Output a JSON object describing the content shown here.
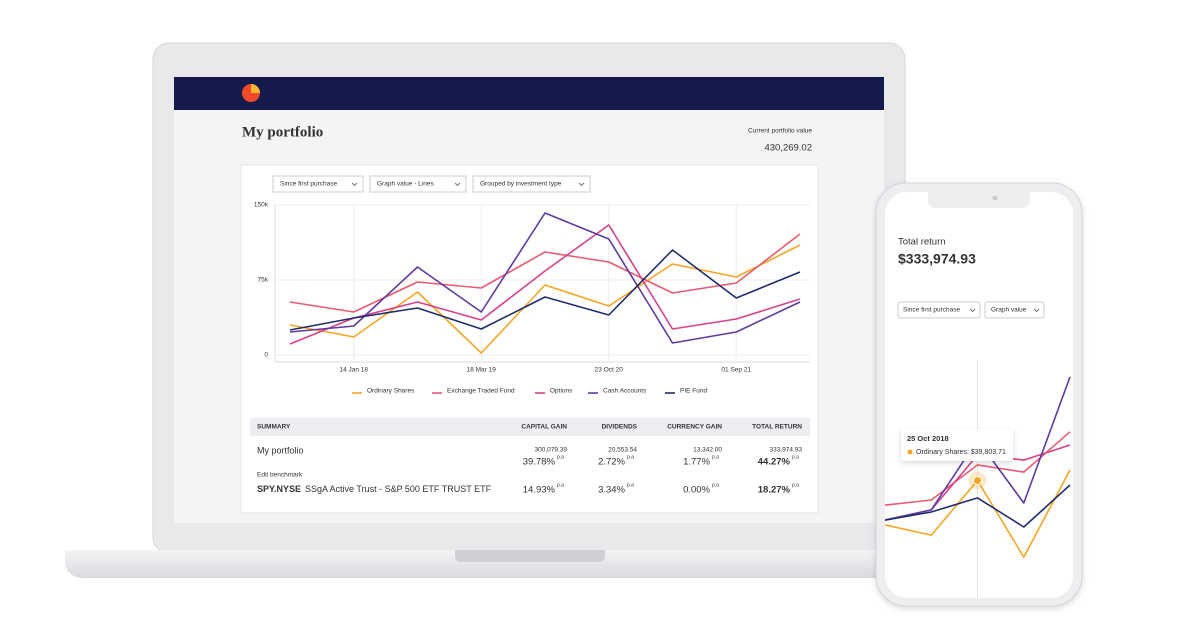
{
  "laptop": {
    "title": "My portfolio",
    "value_caption": "Current portfolio value",
    "value": "430,269.02",
    "filters": [
      "Since first purchase",
      "Graph value - Lines",
      "Grouped by investment type"
    ],
    "summary": {
      "headers": [
        "SUMMARY",
        "CAPITAL GAIN",
        "DIVIDENDS",
        "CURRENCY GAIN",
        "TOTAL RETURN"
      ],
      "pa_label": "p.a",
      "portfolio": {
        "name": "My portfolio",
        "amounts": [
          "300,079.39",
          "20,553.54",
          "13,342.00",
          "333,974.93"
        ],
        "percents": [
          "39.78%",
          "2.72%",
          "1.77%",
          "44.27%"
        ]
      },
      "edit_benchmark": "Edit benchmark",
      "benchmark": {
        "ticker": "SPY.NYSE",
        "name": "SSgA Active Trust - S&P 500 ETF TRUST ETF",
        "percents": [
          "14.93%",
          "3.34%",
          "0.00%",
          "18.27%"
        ]
      }
    }
  },
  "phone": {
    "title": "Total return",
    "value": "$333,974.93",
    "filters": [
      "Since first purchase",
      "Graph value"
    ],
    "tooltip": {
      "date": "25 Oct 2018",
      "text": "Ordinary Shares: $39,803.71"
    }
  },
  "chart_data": [
    {
      "type": "line",
      "categories": [
        null,
        "14 Jan 18",
        null,
        "18 Mar 19",
        null,
        "23 Oct 20",
        null,
        "01 Sep 21",
        null
      ],
      "ylim": [
        0,
        150000
      ],
      "yticks": [
        0,
        {
          "value": 75000,
          "label": "75k"
        },
        {
          "value": 150000,
          "label": "150k"
        }
      ],
      "grid": true,
      "series": [
        {
          "name": "Ordinary Shares",
          "color": "#f5a623",
          "values": [
            30000,
            18000,
            63000,
            2000,
            70000,
            49000,
            91000,
            78000,
            110000
          ]
        },
        {
          "name": "Exchange Traded Fund",
          "color": "#ea5a6f",
          "values": [
            53000,
            43000,
            73000,
            67000,
            103000,
            93000,
            62000,
            72000,
            121000
          ]
        },
        {
          "name": "Options",
          "color": "#d9408a",
          "values": [
            11000,
            37000,
            53000,
            35000,
            84000,
            130000,
            26000,
            36000,
            56000
          ]
        },
        {
          "name": "Cash Accounts",
          "color": "#5e3aa0",
          "values": [
            23000,
            29000,
            88000,
            43000,
            142000,
            116000,
            12000,
            23000,
            53000
          ]
        },
        {
          "name": "PIE Fund",
          "color": "#1f2e6e",
          "values": [
            25000,
            37000,
            47000,
            26000,
            58000,
            40000,
            105000,
            57000,
            83000
          ]
        }
      ]
    },
    {
      "type": "line",
      "series": [
        {
          "name": "Ordinary Shares",
          "color": "#f5a623",
          "values": [
            25000,
            21600,
            39803.71,
            14300,
            43300
          ]
        },
        {
          "name": "Exchange Traded Fund",
          "color": "#ea5a6f",
          "values": [
            31600,
            33300,
            45000,
            42600,
            56000
          ]
        },
        {
          "name": "Options",
          "color": "#d9408a",
          "values": [
            26600,
            30000,
            48300,
            46600,
            51600
          ]
        },
        {
          "name": "Cash Accounts",
          "color": "#5e3aa0",
          "values": [
            26600,
            30000,
            53300,
            32300,
            74300
          ]
        },
        {
          "name": "PIE Fund",
          "color": "#1f2e6e",
          "values": [
            26600,
            29300,
            34000,
            24300,
            38300
          ]
        }
      ]
    }
  ]
}
